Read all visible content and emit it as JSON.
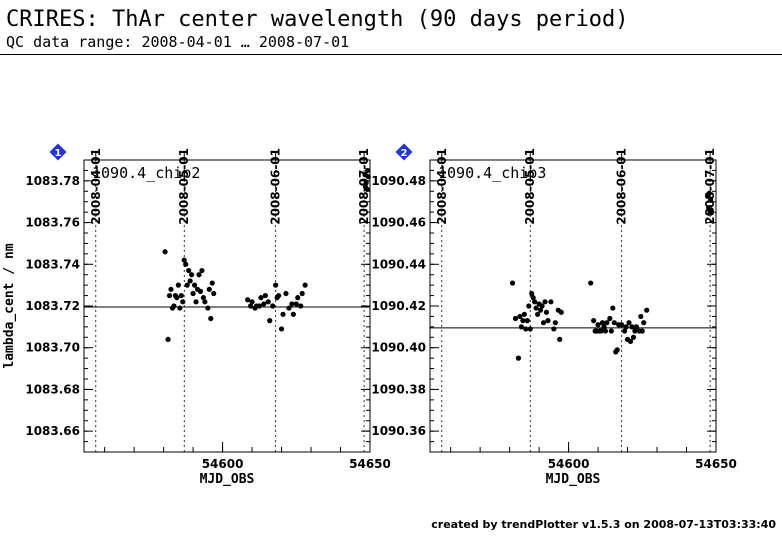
{
  "header": {
    "title": "CRIRES: ThAr center wavelength (90 days period)",
    "subtitle": "QC data range: 2008-04-01 … 2008-07-01"
  },
  "footer": {
    "text": "created by trendPlotter v1.5.3 on 2008-07-13T03:33:40"
  },
  "chart_data": [
    {
      "type": "scatter",
      "panel_number": "1",
      "panel_label": "1090.4_chip2",
      "xlabel": "MJD_OBS",
      "ylabel": "lambda_cent / nm",
      "xlim": [
        54553,
        54650
      ],
      "ylim": [
        1083.65,
        1083.79
      ],
      "xticks": [
        54600,
        54650
      ],
      "xticklabels": [
        "54600",
        "54650"
      ],
      "yticks": [
        1083.66,
        1083.68,
        1083.7,
        1083.72,
        1083.74,
        1083.76,
        1083.78
      ],
      "yticklabels": [
        "1083.66",
        "1083.68",
        "1083.70",
        "1083.72",
        "1083.74",
        "1083.76",
        "1083.78"
      ],
      "reference_line": 1083.7195,
      "date_markers": [
        {
          "x": 54557,
          "label": "2008-04-01"
        },
        {
          "x": 54587,
          "label": "2008-05-01"
        },
        {
          "x": 54618,
          "label": "2008-06-01"
        },
        {
          "x": 54648,
          "label": "2008-07-01"
        }
      ],
      "points": [
        [
          54580.5,
          1083.746
        ],
        [
          54581.5,
          1083.704
        ],
        [
          54582,
          1083.725
        ],
        [
          54582.5,
          1083.728
        ],
        [
          54583,
          1083.719
        ],
        [
          54583.5,
          1083.72
        ],
        [
          54584,
          1083.725
        ],
        [
          54584.5,
          1083.724
        ],
        [
          54585,
          1083.73
        ],
        [
          54585.5,
          1083.719
        ],
        [
          54586,
          1083.725
        ],
        [
          54586.5,
          1083.722
        ],
        [
          54587,
          1083.742
        ],
        [
          54587.5,
          1083.74
        ],
        [
          54588,
          1083.73
        ],
        [
          54588.5,
          1083.737
        ],
        [
          54589,
          1083.732
        ],
        [
          54589.5,
          1083.735
        ],
        [
          54590,
          1083.726
        ],
        [
          54590.5,
          1083.73
        ],
        [
          54591,
          1083.722
        ],
        [
          54591.5,
          1083.728
        ],
        [
          54592,
          1083.735
        ],
        [
          54592.5,
          1083.727
        ],
        [
          54593,
          1083.737
        ],
        [
          54593.5,
          1083.724
        ],
        [
          54594,
          1083.722
        ],
        [
          54595,
          1083.719
        ],
        [
          54595.5,
          1083.728
        ],
        [
          54596,
          1083.714
        ],
        [
          54596.5,
          1083.731
        ],
        [
          54597,
          1083.726
        ],
        [
          54608.5,
          1083.723
        ],
        [
          54609.5,
          1083.72
        ],
        [
          54610,
          1083.722
        ],
        [
          54611,
          1083.719
        ],
        [
          54611.5,
          1083.72
        ],
        [
          54612.5,
          1083.72
        ],
        [
          54613,
          1083.724
        ],
        [
          54614,
          1083.721
        ],
        [
          54614.5,
          1083.725
        ],
        [
          54615.5,
          1083.722
        ],
        [
          54616,
          1083.713
        ],
        [
          54617,
          1083.72
        ],
        [
          54618,
          1083.73
        ],
        [
          54618.5,
          1083.724
        ],
        [
          54619,
          1083.725
        ],
        [
          54620,
          1083.709
        ],
        [
          54620.5,
          1083.716
        ],
        [
          54621.5,
          1083.726
        ],
        [
          54622.5,
          1083.719
        ],
        [
          54623.5,
          1083.721
        ],
        [
          54624,
          1083.716
        ],
        [
          54625,
          1083.721
        ],
        [
          54625.5,
          1083.724
        ],
        [
          54626.5,
          1083.72
        ],
        [
          54627,
          1083.726
        ],
        [
          54628,
          1083.73
        ],
        [
          54648.3,
          1083.783
        ],
        [
          54648.5,
          1083.777
        ],
        [
          54648.7,
          1083.779
        ],
        [
          54649,
          1083.776
        ],
        [
          54649.2,
          1083.785
        ],
        [
          54649.4,
          1083.782
        ]
      ]
    },
    {
      "type": "scatter",
      "panel_number": "2",
      "panel_label": "1090.4_chip3",
      "xlabel": "MJD_OBS",
      "ylabel": "",
      "xlim": [
        54553,
        54650
      ],
      "ylim": [
        1090.35,
        1090.49
      ],
      "xticks": [
        54600,
        54650
      ],
      "xticklabels": [
        "54600",
        "54650"
      ],
      "yticks": [
        1090.36,
        1090.38,
        1090.4,
        1090.42,
        1090.44,
        1090.46,
        1090.48
      ],
      "yticklabels": [
        "1090.36",
        "1090.38",
        "1090.40",
        "1090.42",
        "1090.44",
        "1090.46",
        "1090.48"
      ],
      "reference_line": 1090.4095,
      "date_markers": [
        {
          "x": 54557,
          "label": "2008-04-01"
        },
        {
          "x": 54587,
          "label": "2008-05-01"
        },
        {
          "x": 54618,
          "label": "2008-06-01"
        },
        {
          "x": 54648,
          "label": "2008-07-01"
        }
      ],
      "points": [
        [
          54581,
          1090.431
        ],
        [
          54582,
          1090.414
        ],
        [
          54583,
          1090.395
        ],
        [
          54583.5,
          1090.415
        ],
        [
          54584,
          1090.41
        ],
        [
          54584.5,
          1090.413
        ],
        [
          54585,
          1090.416
        ],
        [
          54585.5,
          1090.409
        ],
        [
          54586,
          1090.413
        ],
        [
          54586.5,
          1090.42
        ],
        [
          54587,
          1090.409
        ],
        [
          54587.5,
          1090.426
        ],
        [
          54588,
          1090.424
        ],
        [
          54588.5,
          1090.422
        ],
        [
          54589,
          1090.419
        ],
        [
          54589.5,
          1090.416
        ],
        [
          54590,
          1090.421
        ],
        [
          54590.5,
          1090.418
        ],
        [
          54591,
          1090.42
        ],
        [
          54591.5,
          1090.412
        ],
        [
          54592,
          1090.422
        ],
        [
          54592.5,
          1090.417
        ],
        [
          54593,
          1090.413
        ],
        [
          54594,
          1090.422
        ],
        [
          54595,
          1090.409
        ],
        [
          54595.5,
          1090.412
        ],
        [
          54596.5,
          1090.418
        ],
        [
          54597,
          1090.404
        ],
        [
          54597.5,
          1090.417
        ],
        [
          54607.5,
          1090.431
        ],
        [
          54608.5,
          1090.413
        ],
        [
          54609,
          1090.408
        ],
        [
          54609.5,
          1090.408
        ],
        [
          54610,
          1090.411
        ],
        [
          54610.5,
          1090.408
        ],
        [
          54611,
          1090.408
        ],
        [
          54611.5,
          1090.412
        ],
        [
          54612,
          1090.41
        ],
        [
          54612.5,
          1090.408
        ],
        [
          54613,
          1090.412
        ],
        [
          54614,
          1090.414
        ],
        [
          54614.5,
          1090.408
        ],
        [
          54615,
          1090.419
        ],
        [
          54615.5,
          1090.412
        ],
        [
          54616,
          1090.398
        ],
        [
          54616.5,
          1090.399
        ],
        [
          54617,
          1090.411
        ],
        [
          54618,
          1090.411
        ],
        [
          54619,
          1090.408
        ],
        [
          54619.5,
          1090.41
        ],
        [
          54620,
          1090.404
        ],
        [
          54620.5,
          1090.412
        ],
        [
          54621,
          1090.403
        ],
        [
          54621.5,
          1090.41
        ],
        [
          54622,
          1090.405
        ],
        [
          54622.5,
          1090.408
        ],
        [
          54623,
          1090.41
        ],
        [
          54624,
          1090.408
        ],
        [
          54624.5,
          1090.415
        ],
        [
          54625,
          1090.408
        ],
        [
          54625.5,
          1090.412
        ],
        [
          54626.5,
          1090.418
        ],
        [
          54647.3,
          1090.473
        ],
        [
          54647.5,
          1090.467
        ],
        [
          54647.7,
          1090.474
        ],
        [
          54648,
          1090.465
        ],
        [
          54648.2,
          1090.471
        ],
        [
          54648.4,
          1090.466
        ]
      ]
    }
  ],
  "colors": {
    "marker_badge": "#2233dd",
    "foreground": "#000000",
    "background": "#ffffff"
  }
}
